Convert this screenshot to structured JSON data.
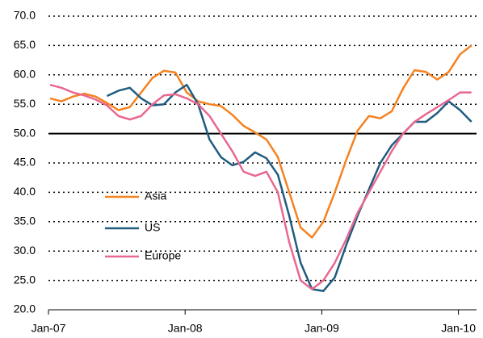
{
  "chart_data": {
    "type": "line",
    "categories": [
      "Jan-07",
      null,
      null,
      null,
      null,
      null,
      null,
      null,
      null,
      null,
      null,
      null,
      "Jan-08",
      null,
      null,
      null,
      null,
      null,
      null,
      null,
      null,
      null,
      null,
      null,
      "Jan-09",
      null,
      null,
      null,
      null,
      null,
      null,
      null,
      null,
      null,
      null,
      null,
      "Jan-10",
      null
    ],
    "series": [
      {
        "name": "Asia",
        "color": "#f58220",
        "values": [
          56,
          55.5,
          56.3,
          56.8,
          56.3,
          55.2,
          54,
          54.5,
          57,
          59.5,
          60.7,
          60.4,
          57,
          55.5,
          55,
          54.7,
          53.2,
          51.3,
          50.2,
          49,
          46,
          40,
          34,
          32.3,
          35,
          40,
          45.5,
          50.5,
          53,
          52.6,
          53.8,
          57.7,
          60.8,
          60.5,
          59.2,
          60.5,
          63.5,
          65
        ]
      },
      {
        "name": "US",
        "color": "#1f5c7f",
        "values": [
          null,
          null,
          null,
          null,
          null,
          56.4,
          57.3,
          57.8,
          56,
          54.8,
          55,
          57,
          58.3,
          55,
          49,
          46,
          44.6,
          45.2,
          46.8,
          45.8,
          43,
          36,
          28,
          23.5,
          23.2,
          25.5,
          31,
          36,
          40.5,
          45,
          48,
          50,
          52,
          52,
          53.5,
          55.5,
          54,
          52
        ]
      },
      {
        "name": "Europe",
        "color": "#e8688f",
        "values": [
          58.3,
          57.8,
          57,
          56.5,
          55.8,
          54.8,
          53,
          52.4,
          53,
          55,
          56.5,
          56.7,
          56,
          55,
          53,
          50,
          47,
          43.5,
          42.8,
          43.5,
          40,
          31.5,
          25,
          23.5,
          25,
          28,
          32,
          36.5,
          40,
          43.5,
          47,
          50,
          52,
          53.3,
          54.5,
          55.7,
          57,
          57
        ]
      }
    ],
    "ylim": [
      20,
      70
    ],
    "yticks": [
      {
        "value": 20,
        "label": "20.0"
      },
      {
        "value": 25,
        "label": "25.0"
      },
      {
        "value": 30,
        "label": "30.0"
      },
      {
        "value": 35,
        "label": "35.0"
      },
      {
        "value": 40,
        "label": "40.0"
      },
      {
        "value": 45,
        "label": "45.0"
      },
      {
        "value": 50,
        "label": "50.0"
      },
      {
        "value": 55,
        "label": "55.0"
      },
      {
        "value": 60,
        "label": "60.0"
      },
      {
        "value": 65,
        "label": "65.0"
      },
      {
        "value": 70,
        "label": "70.0"
      }
    ],
    "reference_line": 50,
    "grid": true,
    "legend": "center-left"
  }
}
